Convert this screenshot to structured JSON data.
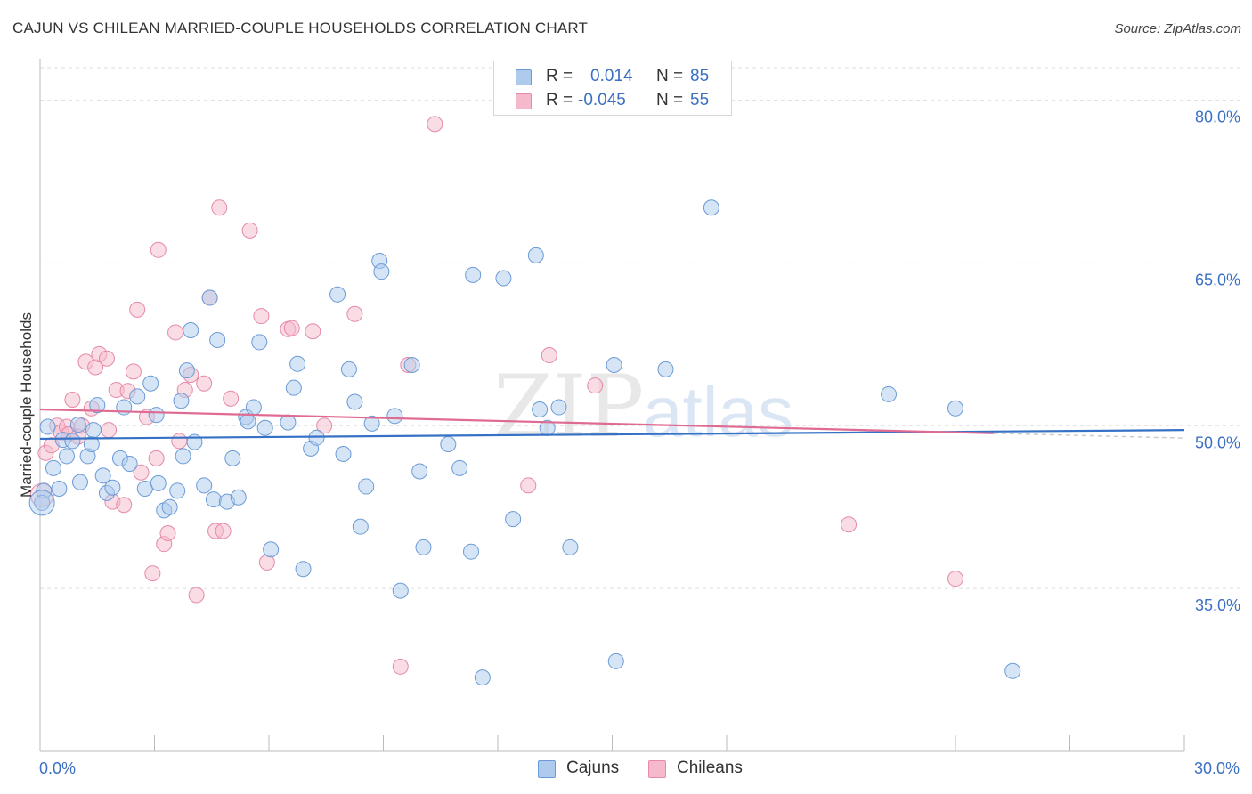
{
  "title": "CAJUN VS CHILEAN MARRIED-COUPLE HOUSEHOLDS CORRELATION CHART",
  "source": "Source: ZipAtlas.com",
  "watermark": "ZIPatlas",
  "legend": {
    "rows": [
      {
        "r_label": "R =",
        "r_value": "0.014",
        "n_label": "N =",
        "n_value": "85"
      },
      {
        "r_label": "R =",
        "r_value": "-0.045",
        "n_label": "N =",
        "n_value": "55"
      }
    ]
  },
  "bottom_legend": {
    "cajuns": "Cajuns",
    "chileans": "Chileans"
  },
  "colors": {
    "cajun_fill": "#aecbee",
    "cajun_stroke": "#6b9bd6",
    "cajun_line": "#3572c6",
    "chilean_fill": "#f5b9cb",
    "chilean_stroke": "#e58aa8",
    "chilean_line": "#e06b92",
    "grid": "#dddddd",
    "axis_text": "#3a6fc4"
  },
  "chart_data": {
    "type": "scatter",
    "title": "CAJUN VS CHILEAN MARRIED-COUPLE HOUSEHOLDS CORRELATION CHART",
    "xlabel": "",
    "ylabel": "Married-couple Households",
    "xlim": [
      0,
      30
    ],
    "ylim": [
      20,
      83
    ],
    "x_tick_labels": [
      "0.0%",
      "30.0%"
    ],
    "y_ticks": [
      35,
      50,
      65,
      80
    ],
    "y_tick_labels": [
      "35.0%",
      "50.0%",
      "65.0%",
      "80.0%"
    ],
    "grid": true,
    "legend_position": "top-center",
    "series": [
      {
        "name": "Cajuns",
        "r": 0.014,
        "n": 85,
        "trend": {
          "x": [
            0,
            30
          ],
          "y": [
            48.8,
            49.6
          ]
        },
        "points": [
          [
            0.1,
            44.0
          ],
          [
            0.2,
            49.9
          ],
          [
            0.35,
            46.1
          ],
          [
            0.5,
            44.2
          ],
          [
            0.6,
            48.7
          ],
          [
            0.7,
            47.2
          ],
          [
            0.85,
            48.6
          ],
          [
            1.0,
            50.1
          ],
          [
            1.05,
            44.8
          ],
          [
            1.25,
            47.2
          ],
          [
            1.35,
            48.3
          ],
          [
            1.4,
            49.6
          ],
          [
            1.5,
            51.9
          ],
          [
            1.65,
            45.4
          ],
          [
            1.75,
            43.8
          ],
          [
            1.9,
            44.3
          ],
          [
            2.1,
            47.0
          ],
          [
            2.2,
            51.7
          ],
          [
            2.35,
            46.5
          ],
          [
            2.55,
            52.7
          ],
          [
            2.75,
            44.2
          ],
          [
            2.9,
            53.9
          ],
          [
            3.05,
            51.0
          ],
          [
            3.1,
            44.7
          ],
          [
            3.25,
            42.2
          ],
          [
            3.4,
            42.5
          ],
          [
            3.6,
            44.0
          ],
          [
            3.7,
            52.3
          ],
          [
            3.75,
            47.2
          ],
          [
            3.85,
            55.1
          ],
          [
            3.95,
            58.8
          ],
          [
            4.05,
            48.5
          ],
          [
            4.3,
            44.5
          ],
          [
            4.45,
            61.8
          ],
          [
            4.55,
            43.2
          ],
          [
            4.65,
            57.9
          ],
          [
            4.9,
            43.0
          ],
          [
            5.05,
            47.0
          ],
          [
            5.2,
            43.4
          ],
          [
            5.4,
            50.8
          ],
          [
            5.45,
            50.4
          ],
          [
            5.6,
            51.7
          ],
          [
            5.75,
            57.7
          ],
          [
            5.9,
            49.8
          ],
          [
            6.05,
            38.6
          ],
          [
            6.5,
            50.3
          ],
          [
            6.65,
            53.5
          ],
          [
            6.75,
            55.7
          ],
          [
            6.9,
            36.8
          ],
          [
            7.1,
            47.9
          ],
          [
            7.25,
            48.9
          ],
          [
            7.8,
            62.1
          ],
          [
            7.95,
            47.4
          ],
          [
            8.1,
            55.2
          ],
          [
            8.25,
            52.2
          ],
          [
            8.4,
            40.7
          ],
          [
            8.55,
            44.4
          ],
          [
            8.7,
            50.2
          ],
          [
            8.9,
            65.2
          ],
          [
            8.95,
            64.2
          ],
          [
            9.3,
            50.9
          ],
          [
            9.45,
            34.8
          ],
          [
            9.75,
            55.6
          ],
          [
            9.95,
            45.8
          ],
          [
            10.05,
            38.8
          ],
          [
            10.7,
            48.3
          ],
          [
            11.0,
            46.1
          ],
          [
            11.3,
            38.4
          ],
          [
            11.35,
            63.9
          ],
          [
            11.6,
            26.8
          ],
          [
            12.15,
            63.6
          ],
          [
            12.4,
            41.4
          ],
          [
            13.0,
            65.7
          ],
          [
            13.1,
            51.5
          ],
          [
            13.3,
            49.8
          ],
          [
            13.6,
            51.7
          ],
          [
            13.9,
            38.8
          ],
          [
            15.05,
            55.6
          ],
          [
            15.1,
            28.3
          ],
          [
            16.4,
            55.2
          ],
          [
            17.6,
            70.1
          ],
          [
            22.25,
            52.9
          ],
          [
            24.0,
            51.6
          ],
          [
            25.5,
            27.4
          ],
          [
            0.05,
            42.9
          ]
        ]
      },
      {
        "name": "Chileans",
        "r": -0.045,
        "n": 55,
        "trend": {
          "x": [
            0,
            25
          ],
          "y": [
            51.5,
            49.3
          ]
        },
        "points": [
          [
            0.15,
            47.5
          ],
          [
            0.3,
            48.2
          ],
          [
            0.45,
            50.0
          ],
          [
            0.55,
            49.4
          ],
          [
            0.7,
            49.9
          ],
          [
            0.75,
            49.2
          ],
          [
            0.85,
            52.4
          ],
          [
            1.0,
            49.0
          ],
          [
            1.1,
            50.0
          ],
          [
            1.2,
            55.9
          ],
          [
            1.35,
            51.6
          ],
          [
            1.45,
            55.4
          ],
          [
            1.55,
            56.6
          ],
          [
            1.75,
            56.2
          ],
          [
            1.8,
            49.6
          ],
          [
            1.9,
            43.0
          ],
          [
            2.0,
            53.3
          ],
          [
            2.2,
            42.7
          ],
          [
            2.3,
            53.2
          ],
          [
            2.45,
            55.0
          ],
          [
            2.55,
            60.7
          ],
          [
            2.65,
            45.7
          ],
          [
            2.8,
            50.8
          ],
          [
            2.95,
            36.4
          ],
          [
            3.05,
            47.0
          ],
          [
            3.1,
            66.2
          ],
          [
            3.25,
            39.1
          ],
          [
            3.35,
            40.1
          ],
          [
            3.55,
            58.6
          ],
          [
            3.65,
            48.6
          ],
          [
            3.8,
            53.3
          ],
          [
            3.95,
            54.7
          ],
          [
            4.1,
            34.4
          ],
          [
            4.3,
            53.9
          ],
          [
            4.45,
            61.8
          ],
          [
            4.6,
            40.3
          ],
          [
            4.7,
            70.1
          ],
          [
            4.8,
            40.3
          ],
          [
            5.0,
            52.5
          ],
          [
            5.5,
            68.0
          ],
          [
            5.8,
            60.1
          ],
          [
            5.95,
            37.4
          ],
          [
            6.5,
            58.9
          ],
          [
            6.6,
            59.0
          ],
          [
            7.15,
            58.7
          ],
          [
            7.45,
            50.0
          ],
          [
            8.25,
            60.3
          ],
          [
            9.45,
            27.8
          ],
          [
            9.65,
            55.6
          ],
          [
            10.35,
            77.8
          ],
          [
            12.8,
            44.5
          ],
          [
            13.35,
            56.5
          ],
          [
            14.55,
            53.7
          ],
          [
            21.2,
            40.9
          ],
          [
            24.0,
            35.9
          ]
        ]
      }
    ]
  }
}
